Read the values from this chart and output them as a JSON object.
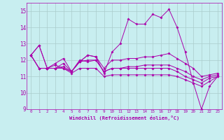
{
  "xlabel": "Windchill (Refroidissement éolien,°C)",
  "background_color": "#c8eef0",
  "line_color": "#aa00aa",
  "grid_color": "#aacccc",
  "x": [
    0,
    1,
    2,
    3,
    4,
    5,
    6,
    7,
    8,
    9,
    10,
    11,
    12,
    13,
    14,
    15,
    16,
    17,
    18,
    19,
    20,
    21,
    22,
    23
  ],
  "lines": [
    [
      12.3,
      12.9,
      11.5,
      11.8,
      12.1,
      11.3,
      11.9,
      12.3,
      12.2,
      11.2,
      12.5,
      13.0,
      14.5,
      14.2,
      14.2,
      14.8,
      14.6,
      15.1,
      14.0,
      12.5,
      10.6,
      9.0,
      10.4,
      11.0
    ],
    [
      12.3,
      12.9,
      11.5,
      11.7,
      11.5,
      11.3,
      11.9,
      12.3,
      12.2,
      11.5,
      12.0,
      12.0,
      12.1,
      12.1,
      12.2,
      12.2,
      12.3,
      12.4,
      12.1,
      11.8,
      11.5,
      11.0,
      11.1,
      11.2
    ],
    [
      12.3,
      11.5,
      11.5,
      11.5,
      11.8,
      11.3,
      11.9,
      12.0,
      12.0,
      11.3,
      11.5,
      11.5,
      11.6,
      11.6,
      11.7,
      11.7,
      11.7,
      11.7,
      11.5,
      11.3,
      11.0,
      10.8,
      11.0,
      11.1
    ],
    [
      12.3,
      11.5,
      11.5,
      11.5,
      11.6,
      11.3,
      12.0,
      11.9,
      12.0,
      11.3,
      11.5,
      11.5,
      11.5,
      11.5,
      11.5,
      11.5,
      11.5,
      11.5,
      11.3,
      11.0,
      10.8,
      10.6,
      10.9,
      11.0
    ],
    [
      12.3,
      11.5,
      11.5,
      11.5,
      11.5,
      11.2,
      11.5,
      11.5,
      11.5,
      11.0,
      11.1,
      11.1,
      11.1,
      11.1,
      11.1,
      11.1,
      11.1,
      11.1,
      11.0,
      10.8,
      10.6,
      10.4,
      10.7,
      11.0
    ]
  ],
  "ylim": [
    9,
    15.5
  ],
  "xlim": [
    -0.5,
    23.5
  ],
  "yticks": [
    9,
    10,
    11,
    12,
    13,
    14,
    15
  ],
  "xticks": [
    0,
    1,
    2,
    3,
    4,
    5,
    6,
    7,
    8,
    9,
    10,
    11,
    12,
    13,
    14,
    15,
    16,
    17,
    18,
    19,
    20,
    21,
    22,
    23
  ]
}
